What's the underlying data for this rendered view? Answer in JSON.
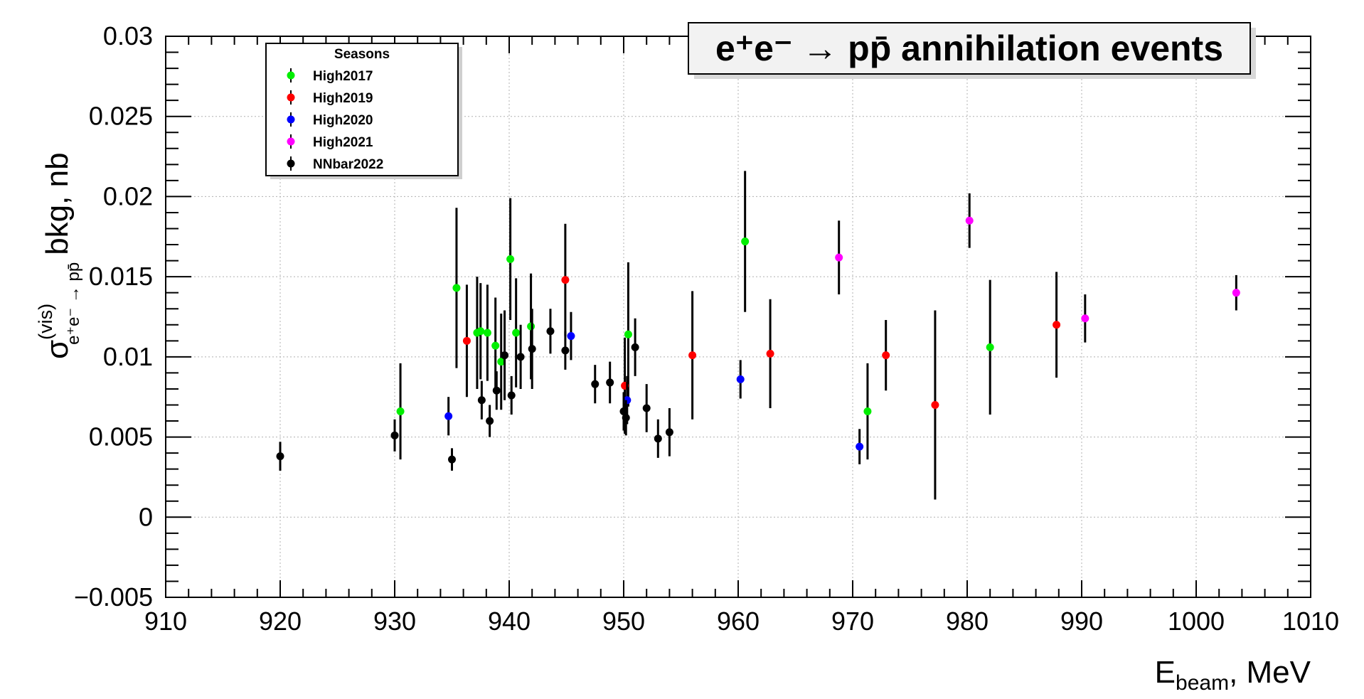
{
  "chart_data": {
    "type": "scatter",
    "title": "e⁺e⁻ → pp̄ annihilation events",
    "xlabel": "E_beam, MeV",
    "ylabel": "σ(vis) e⁺e⁻ → pp̄ bkg, nb",
    "xlim": [
      910,
      1010
    ],
    "ylim": [
      -0.005,
      0.03
    ],
    "xticks": [
      910,
      920,
      930,
      940,
      950,
      960,
      970,
      980,
      990,
      1000,
      1010
    ],
    "xtick_labels": [
      "910",
      "920",
      "930",
      "940",
      "950",
      "960",
      "970",
      "980",
      "990",
      "1000",
      "1010"
    ],
    "yticks": [
      -0.005,
      0,
      0.005,
      0.01,
      0.015,
      0.02,
      0.025,
      0.03
    ],
    "ytick_labels": [
      "−0.005",
      "0",
      "0.005",
      "0.01",
      "0.015",
      "0.02",
      "0.025",
      "0.03"
    ],
    "grid": true,
    "legend_position": "top-left",
    "legend_title": "Seasons",
    "series": [
      {
        "name": "High2017",
        "color": "#00ee00",
        "points": [
          {
            "x": 930.5,
            "y": 0.0066,
            "err": 0.003
          },
          {
            "x": 935.4,
            "y": 0.0143,
            "err": 0.005
          },
          {
            "x": 937.2,
            "y": 0.0115,
            "err": 0.0035
          },
          {
            "x": 937.5,
            "y": 0.0116,
            "err": 0.003
          },
          {
            "x": 938.1,
            "y": 0.0115,
            "err": 0.003
          },
          {
            "x": 938.8,
            "y": 0.0107,
            "err": 0.003
          },
          {
            "x": 939.3,
            "y": 0.0097,
            "err": 0.003
          },
          {
            "x": 940.1,
            "y": 0.0161,
            "err": 0.0038
          },
          {
            "x": 940.6,
            "y": 0.0115,
            "err": 0.0034
          },
          {
            "x": 941.9,
            "y": 0.0119,
            "err": 0.0033
          },
          {
            "x": 950.4,
            "y": 0.0114,
            "err": 0.0045
          },
          {
            "x": 960.6,
            "y": 0.0172,
            "err": 0.0044
          },
          {
            "x": 971.3,
            "y": 0.0066,
            "err": 0.003
          },
          {
            "x": 982.0,
            "y": 0.0106,
            "err": 0.0042
          }
        ]
      },
      {
        "name": "High2019",
        "color": "#ff0000",
        "points": [
          {
            "x": 936.3,
            "y": 0.011,
            "err": 0.0035
          },
          {
            "x": 944.9,
            "y": 0.0148,
            "err": 0.0035
          },
          {
            "x": 950.1,
            "y": 0.0082,
            "err": 0.003
          },
          {
            "x": 956.0,
            "y": 0.0101,
            "err": 0.004
          },
          {
            "x": 962.8,
            "y": 0.0102,
            "err": 0.0034
          },
          {
            "x": 972.9,
            "y": 0.0101,
            "err": 0.0022
          },
          {
            "x": 977.2,
            "y": 0.007,
            "err": 0.0059
          },
          {
            "x": 987.8,
            "y": 0.012,
            "err": 0.0033
          }
        ]
      },
      {
        "name": "High2020",
        "color": "#0000ff",
        "points": [
          {
            "x": 934.7,
            "y": 0.0063,
            "err": 0.0012
          },
          {
            "x": 945.4,
            "y": 0.0113,
            "err": 0.0015
          },
          {
            "x": 950.3,
            "y": 0.0073,
            "err": 0.0015
          },
          {
            "x": 960.2,
            "y": 0.0086,
            "err": 0.0012
          },
          {
            "x": 970.6,
            "y": 0.0044,
            "err": 0.0011
          }
        ]
      },
      {
        "name": "High2021",
        "color": "#ff00ff",
        "points": [
          {
            "x": 968.8,
            "y": 0.0162,
            "err": 0.0023
          },
          {
            "x": 980.2,
            "y": 0.0185,
            "err": 0.0017
          },
          {
            "x": 990.3,
            "y": 0.0124,
            "err": 0.0015
          },
          {
            "x": 1003.5,
            "y": 0.014,
            "err": 0.0011
          }
        ]
      },
      {
        "name": "NNbar2022",
        "color": "#000000",
        "points": [
          {
            "x": 920.0,
            "y": 0.0038,
            "err": 0.0009
          },
          {
            "x": 930.0,
            "y": 0.0051,
            "err": 0.001
          },
          {
            "x": 935.0,
            "y": 0.0036,
            "err": 0.0007
          },
          {
            "x": 937.6,
            "y": 0.0073,
            "err": 0.0012
          },
          {
            "x": 938.3,
            "y": 0.006,
            "err": 0.001
          },
          {
            "x": 938.9,
            "y": 0.0079,
            "err": 0.0012
          },
          {
            "x": 939.6,
            "y": 0.0101,
            "err": 0.0028
          },
          {
            "x": 940.2,
            "y": 0.0076,
            "err": 0.0012
          },
          {
            "x": 941.0,
            "y": 0.01,
            "err": 0.002
          },
          {
            "x": 942.0,
            "y": 0.0105,
            "err": 0.0025
          },
          {
            "x": 943.6,
            "y": 0.0116,
            "err": 0.0014
          },
          {
            "x": 944.9,
            "y": 0.0104,
            "err": 0.0012
          },
          {
            "x": 947.5,
            "y": 0.0083,
            "err": 0.0012
          },
          {
            "x": 948.8,
            "y": 0.0084,
            "err": 0.0013
          },
          {
            "x": 950.0,
            "y": 0.0066,
            "err": 0.0012
          },
          {
            "x": 950.2,
            "y": 0.0062,
            "err": 0.0011
          },
          {
            "x": 951.0,
            "y": 0.0106,
            "err": 0.0018
          },
          {
            "x": 952.0,
            "y": 0.0068,
            "err": 0.0015
          },
          {
            "x": 953.0,
            "y": 0.0049,
            "err": 0.0012
          },
          {
            "x": 954.0,
            "y": 0.0053,
            "err": 0.0015
          }
        ]
      }
    ]
  }
}
